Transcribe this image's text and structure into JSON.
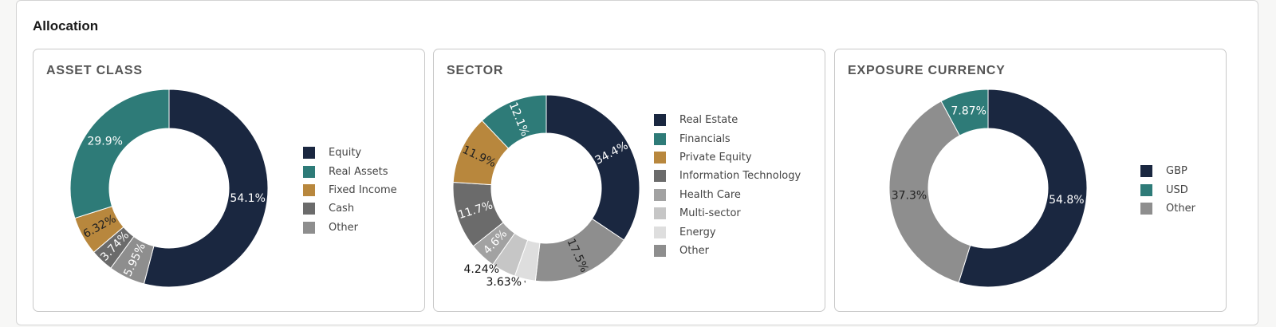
{
  "section_title": "Allocation",
  "chart_data": [
    {
      "type": "pie",
      "title": "ASSET CLASS",
      "slices": [
        {
          "name": "Equity",
          "value": 54.1,
          "label": "54.1%",
          "color": "#1a2740",
          "label_color": "#ffffff"
        },
        {
          "name": "Other",
          "value": 5.95,
          "label": "5.95%",
          "color": "#8e8e8e",
          "label_color": "#ffffff"
        },
        {
          "name": "Cash",
          "value": 3.74,
          "label": "3.74%",
          "color": "#6b6b6b",
          "label_color": "#ffffff"
        },
        {
          "name": "Fixed Income",
          "value": 6.32,
          "label": "6.32%",
          "color": "#b8873d",
          "label_color": "#222222"
        },
        {
          "name": "Real Assets",
          "value": 29.9,
          "label": "29.9%",
          "color": "#2e7b78",
          "label_color": "#ffffff"
        }
      ],
      "legend": [
        "Equity",
        "Real Assets",
        "Fixed Income",
        "Cash",
        "Other"
      ],
      "legend_colors": [
        "#1a2740",
        "#2e7b78",
        "#b8873d",
        "#6b6b6b",
        "#8e8e8e"
      ]
    },
    {
      "type": "pie",
      "title": "SECTOR",
      "slices": [
        {
          "name": "Real Estate",
          "value": 34.4,
          "label": "34.4%",
          "color": "#1a2740",
          "label_color": "#ffffff"
        },
        {
          "name": "Other",
          "value": 17.5,
          "label": "17.5%",
          "color": "#8e8e8e",
          "label_color": "#222222"
        },
        {
          "name": "Energy",
          "value": 3.63,
          "label": "3.63%",
          "color": "#dedede",
          "label_color": "#111111"
        },
        {
          "name": "Multi-sector",
          "value": 4.24,
          "label": "4.24%",
          "color": "#c6c6c6",
          "label_color": "#111111"
        },
        {
          "name": "Health Care",
          "value": 4.6,
          "label": "4.6%",
          "color": "#a2a2a2",
          "label_color": "#ffffff"
        },
        {
          "name": "Information Technology",
          "value": 11.7,
          "label": "11.7%",
          "color": "#6b6b6b",
          "label_color": "#ffffff"
        },
        {
          "name": "Private Equity",
          "value": 11.9,
          "label": "11.9%",
          "color": "#b8873d",
          "label_color": "#222222"
        },
        {
          "name": "Financials",
          "value": 12.1,
          "label": "12.1%",
          "color": "#2e7b78",
          "label_color": "#ffffff"
        }
      ],
      "legend": [
        "Real Estate",
        "Financials",
        "Private Equity",
        "Information Technology",
        "Health Care",
        "Multi-sector",
        "Energy",
        "Other"
      ],
      "legend_colors": [
        "#1a2740",
        "#2e7b78",
        "#b8873d",
        "#6b6b6b",
        "#a2a2a2",
        "#c6c6c6",
        "#dedede",
        "#8e8e8e"
      ]
    },
    {
      "type": "pie",
      "title": "EXPOSURE CURRENCY",
      "slices": [
        {
          "name": "GBP",
          "value": 54.8,
          "label": "54.8%",
          "color": "#1a2740",
          "label_color": "#ffffff"
        },
        {
          "name": "Other",
          "value": 37.3,
          "label": "37.3%",
          "color": "#8e8e8e",
          "label_color": "#222222"
        },
        {
          "name": "USD",
          "value": 7.87,
          "label": "7.87%",
          "color": "#2e7b78",
          "label_color": "#ffffff"
        }
      ],
      "legend": [
        "GBP",
        "USD",
        "Other"
      ],
      "legend_colors": [
        "#1a2740",
        "#2e7b78",
        "#8e8e8e"
      ]
    }
  ]
}
